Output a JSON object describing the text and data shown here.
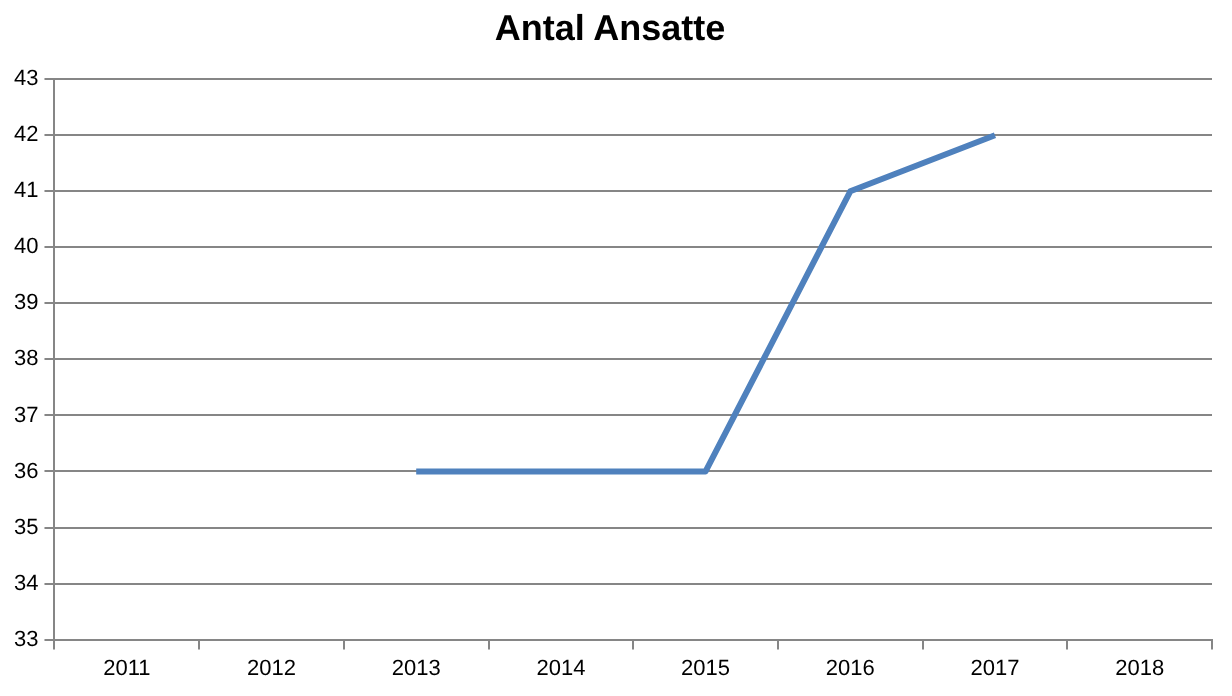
{
  "chart_data": {
    "type": "line",
    "title": "Antal Ansatte",
    "categories": [
      "2011",
      "2012",
      "2013",
      "2014",
      "2015",
      "2016",
      "2017",
      "2018"
    ],
    "series": [
      {
        "color": "#4f81bd",
        "values": [
          null,
          null,
          36,
          36,
          36,
          41,
          42,
          null
        ]
      }
    ],
    "ylim": [
      33,
      43
    ],
    "yticks": [
      33,
      34,
      35,
      36,
      37,
      38,
      39,
      40,
      41,
      42,
      43
    ],
    "grid": "y",
    "legend": false,
    "marker": "none",
    "line_style": "solid"
  }
}
